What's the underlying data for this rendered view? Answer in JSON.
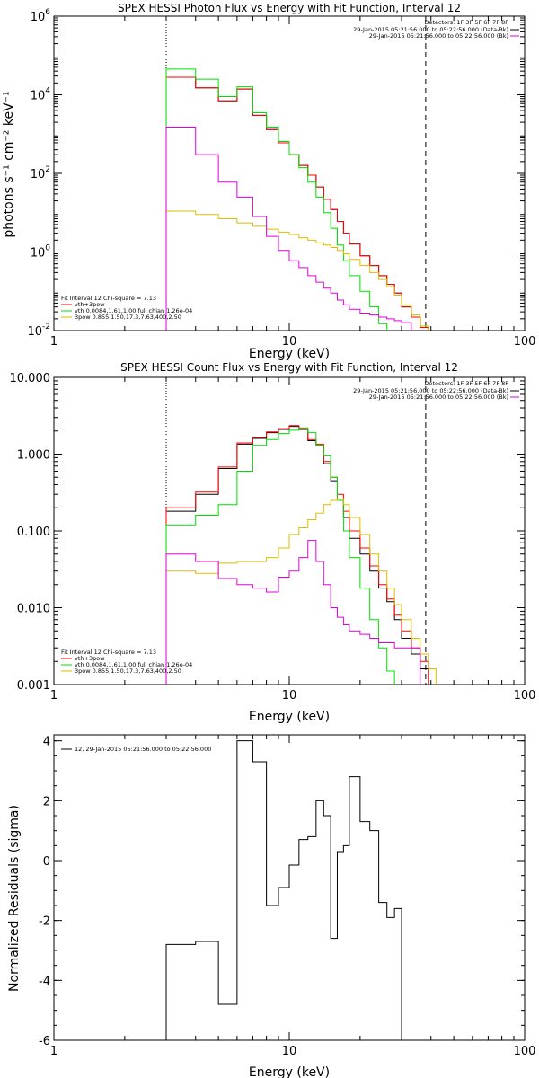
{
  "chart_data": [
    {
      "type": "line",
      "title": "SPEX HESSI Photon Flux vs Energy with Fit Function, Interval 12",
      "xlabel": "Energy (keV)",
      "ylabel": "photons s⁻¹ cm⁻² keV⁻¹",
      "xscale": "log",
      "yscale": "log",
      "xlim": [
        1,
        100
      ],
      "ylim": [
        0.01,
        1000000
      ],
      "x_ticks": [
        "1",
        "10",
        "100"
      ],
      "y_ticks": [
        {
          "base": "10",
          "exp": "-2",
          "value": 0.01
        },
        {
          "base": "10",
          "exp": "0",
          "value": 1
        },
        {
          "base": "10",
          "exp": "2",
          "value": 100
        },
        {
          "base": "10",
          "exp": "4",
          "value": 10000
        },
        {
          "base": "10",
          "exp": "6",
          "value": 1000000
        }
      ],
      "threshold_lines": [
        {
          "style": "dotted",
          "x": 3
        },
        {
          "style": "dashed",
          "x": 38
        }
      ],
      "edges": [
        3,
        4,
        5,
        6,
        7,
        8,
        9,
        10,
        11,
        12,
        13,
        14,
        15,
        16,
        17,
        18,
        20,
        22,
        24,
        26,
        28,
        30,
        33,
        36,
        39
      ],
      "series": [
        {
          "name": "",
          "color": "#000000",
          "values": [
            28000,
            15000,
            7000,
            14000,
            3000,
            1300,
            600,
            300,
            160,
            90,
            45,
            22,
            12,
            6,
            3,
            1.6,
            0.8,
            0.45,
            0.25,
            0.15,
            0.09,
            0.04,
            0.022,
            0.012
          ]
        },
        {
          "name": "vth+3pow",
          "color": "#ff0000",
          "values": [
            28000,
            15000,
            7000,
            14000,
            3000,
            1300,
            600,
            300,
            160,
            90,
            45,
            22,
            12,
            6,
            3,
            1.6,
            0.8,
            0.45,
            0.25,
            0.15,
            0.09,
            0.04,
            0.022,
            0.012
          ]
        },
        {
          "name": "vth 0.0084,1.61,1.00 full chian 1.26e-04",
          "color": "#00dd00",
          "values": [
            45000,
            25000,
            9000,
            16000,
            3500,
            1500,
            650,
            300,
            140,
            60,
            25,
            10,
            4,
            1.5,
            0.6,
            0.25,
            0.1,
            0.04,
            0.015,
            0.006
          ]
        },
        {
          "name": "3pow 0.855,1.50,17.3,7.63,400,2.50",
          "color": "#ddbb00",
          "values": [
            11,
            9,
            7,
            5.5,
            4.5,
            3.8,
            3.2,
            2.8,
            2.3,
            2,
            1.7,
            1.5,
            1.3,
            1.1,
            0.9,
            0.65,
            0.45,
            0.3,
            0.2,
            0.13,
            0.08,
            0.045,
            0.025,
            0.013
          ]
        },
        {
          "name": "",
          "color": "#dd00dd",
          "values": [
            1500,
            300,
            60,
            25,
            8,
            2.5,
            1.1,
            0.6,
            0.4,
            0.25,
            0.17,
            0.12,
            0.09,
            0.06,
            0.045,
            0.035,
            0.028,
            0.025,
            0.022,
            0.02,
            0.018,
            0.016
          ]
        }
      ],
      "legend_right": {
        "detectors": "Detectors: 1F 3F 5F 6F 7F 8F",
        "entries": [
          {
            "text": "29-Jan-2015 05:21:56.000 to 05:22:56.000 (Data-Bk)",
            "color": "#000000"
          },
          {
            "text": "29-Jan-2015 05:21:56.000 to 05:22:56.000 (Bk)",
            "color": "#dd00dd"
          }
        ]
      },
      "legend_left": {
        "header": "Fit Interval 12   Chi-square = 7.13",
        "entries": [
          {
            "text": "vth+3pow",
            "color": "#ff0000"
          },
          {
            "text": "vth 0.0084,1.61,1.00  full chian 1.26e-04",
            "color": "#00dd00"
          },
          {
            "text": "3pow 0.855,1.50,17.3,7.63,400,2.50",
            "color": "#ddbb00"
          }
        ]
      }
    },
    {
      "type": "line",
      "title": "SPEX HESSI Count Flux vs Energy with Fit Function, Interval 12",
      "xlabel": "Energy (keV)",
      "ylabel": "",
      "xscale": "log",
      "yscale": "log",
      "xlim": [
        1,
        100
      ],
      "ylim": [
        0.001,
        10
      ],
      "x_ticks": [
        "1",
        "10",
        "100"
      ],
      "y_ticks": [
        {
          "label": "10.000",
          "value": 10
        },
        {
          "label": "1.000",
          "value": 1
        },
        {
          "label": "0.100",
          "value": 0.1
        },
        {
          "label": "0.010",
          "value": 0.01
        },
        {
          "label": "0.001",
          "value": 0.001
        }
      ],
      "threshold_lines": [
        {
          "style": "dotted",
          "x": 3
        },
        {
          "style": "dashed",
          "x": 38
        }
      ],
      "edges": [
        3,
        4,
        5,
        6,
        7,
        8,
        9,
        10,
        11,
        12,
        13,
        14,
        15,
        16,
        17,
        18,
        20,
        22,
        24,
        26,
        28,
        30,
        33,
        36,
        39,
        42
      ],
      "series": [
        {
          "name": "",
          "color": "#000000",
          "values": [
            0.18,
            0.3,
            0.65,
            1.35,
            1.6,
            1.9,
            2.1,
            2.3,
            2.1,
            1.5,
            1.3,
            0.75,
            0.45,
            0.25,
            0.15,
            0.08,
            0.05,
            0.03,
            0.018,
            0.012,
            0.007,
            0.004,
            0.0025,
            0.0016,
            0.001
          ]
        },
        {
          "name": "vth+3pow",
          "color": "#ff0000",
          "values": [
            0.2,
            0.32,
            0.68,
            1.4,
            1.65,
            1.95,
            2.15,
            2.35,
            2.15,
            1.55,
            1.35,
            0.8,
            0.5,
            0.3,
            0.18,
            0.1,
            0.06,
            0.035,
            0.02,
            0.013,
            0.008,
            0.005,
            0.003,
            0.002
          ]
        },
        {
          "name": "vth 0.0084,1.61,1.00 full chian 1.26e-04",
          "color": "#00dd00",
          "values": [
            0.12,
            0.16,
            0.22,
            0.6,
            1.3,
            1.55,
            1.85,
            2.05,
            2.2,
            1.9,
            1.3,
            0.95,
            0.5,
            0.25,
            0.1,
            0.045,
            0.018,
            0.007,
            0.003,
            0.0015
          ]
        },
        {
          "name": "3pow 0.855,1.50,17.3,7.63,400,2.50",
          "color": "#ddbb00",
          "values": [
            0.03,
            0.028,
            0.038,
            0.04,
            0.04,
            0.045,
            0.06,
            0.09,
            0.11,
            0.14,
            0.17,
            0.22,
            0.25,
            0.26,
            0.22,
            0.15,
            0.09,
            0.05,
            0.03,
            0.018,
            0.011,
            0.007,
            0.004,
            0.0025,
            0.0016,
            0.001
          ]
        },
        {
          "name": "",
          "color": "#dd00dd",
          "values": [
            0.05,
            0.04,
            0.024,
            0.02,
            0.018,
            0.016,
            0.025,
            0.03,
            0.045,
            0.075,
            0.04,
            0.02,
            0.01,
            0.0075,
            0.006,
            0.005,
            0.0045,
            0.004,
            0.0035,
            0.0035,
            0.003,
            0.003,
            0.003
          ]
        }
      ],
      "legend_right": {
        "detectors": "Detectors: 1F 3F 5F 6F 7F 8F",
        "entries": [
          {
            "text": "29-Jan-2015 05:21:56.000 to 05:22:56.000 (Data-Bk)",
            "color": "#000000"
          },
          {
            "text": "29-Jan-2015 05:21:56.000 to 05:22:56.000 (Bk)",
            "color": "#dd00dd"
          }
        ]
      },
      "legend_left": {
        "header": "Fit Interval 12   Chi-square = 7.13",
        "entries": [
          {
            "text": "vth+3pow",
            "color": "#ff0000"
          },
          {
            "text": "vth 0.0084,1.61,1.00  full chian 1.26e-04",
            "color": "#00dd00"
          },
          {
            "text": "3pow 0.855,1.50,17.3,7.63,400,2.50",
            "color": "#ddbb00"
          }
        ]
      }
    },
    {
      "type": "line",
      "title": "",
      "xlabel": "Energy (keV)",
      "ylabel": "Normalized Residuals (sigma)",
      "xscale": "log",
      "yscale": "linear",
      "xlim": [
        1,
        100
      ],
      "ylim": [
        -6,
        4.2
      ],
      "x_ticks": [
        "1",
        "10",
        "100"
      ],
      "y_ticks": [
        {
          "label": "4",
          "value": 4
        },
        {
          "label": "2",
          "value": 2
        },
        {
          "label": "0",
          "value": 0
        },
        {
          "label": "-2",
          "value": -2
        },
        {
          "label": "-4",
          "value": -4
        },
        {
          "label": "-6",
          "value": -6
        }
      ],
      "edges": [
        3,
        4,
        5,
        6,
        7,
        8,
        9,
        10,
        11,
        12,
        13,
        14,
        15,
        16,
        17,
        18,
        20,
        22,
        24,
        26,
        28,
        30,
        33,
        36
      ],
      "series": [
        {
          "name": "12, 29-Jan-2015 05:21:56.000 to 05:22:56.000",
          "color": "#000000",
          "values": [
            -2.8,
            -2.7,
            -4.8,
            4.0,
            3.3,
            -1.5,
            -0.9,
            -0.15,
            0.7,
            0.8,
            2.0,
            1.5,
            -2.6,
            0.3,
            0.5,
            2.8,
            1.3,
            1.0,
            -1.4,
            -1.9,
            -1.6
          ]
        }
      ],
      "legend_left": {
        "header": "",
        "entries": [
          {
            "text": "12, 29-Jan-2015 05:21:56.000 to 05:22:56.000",
            "color": "#000000"
          }
        ]
      }
    }
  ]
}
